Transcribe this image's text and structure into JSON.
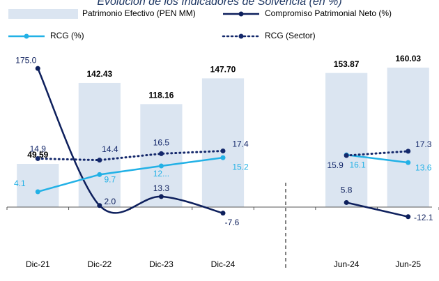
{
  "chart_data": {
    "type": "bar-line",
    "title": "Evolución de los Indicadores de Solvencia (en %)",
    "categories": [
      "Dic-21",
      "Dic-22",
      "Dic-23",
      "Dic-24",
      null,
      "Jun-24",
      "Jun-25"
    ],
    "series": [
      {
        "name": "Patrimonio Efectivo (PEN MM)",
        "type": "bar",
        "axis": "y3",
        "color": "#dbe5f1",
        "values": [
          49.59,
          142.43,
          118.16,
          147.7,
          null,
          153.87,
          160.03
        ],
        "value_labels": [
          "49.59",
          "142.43",
          "118.16",
          "147.70",
          null,
          "153.87",
          "160.03"
        ]
      },
      {
        "name": "Compromiso Patrimonial Neto (%)",
        "type": "line",
        "color": "#0d1f5c",
        "values": [
          175.0,
          2.0,
          13.3,
          -7.6,
          null,
          5.8,
          -12.1
        ],
        "value_labels": [
          "175.0",
          "2.0",
          "13.3",
          "-7.6",
          null,
          "5.8",
          "-12.1"
        ]
      },
      {
        "name": "RCG (%)",
        "type": "line",
        "axis": "y2",
        "color": "#22b1e6",
        "values": [
          4.1,
          9.7,
          12.5,
          15.2,
          null,
          16.1,
          13.6
        ],
        "value_labels": [
          "4.1",
          "9.7",
          "12...",
          "15.2",
          null,
          "16.1",
          "13.6"
        ]
      },
      {
        "name": "RCG (Sector)",
        "type": "dotted-line",
        "axis": "y2",
        "color": "#14286b",
        "values": [
          14.9,
          14.4,
          16.5,
          17.4,
          null,
          15.9,
          17.3
        ],
        "value_labels": [
          "14.9",
          "14.4",
          "16.5",
          "17.4",
          null,
          "15.9",
          "17.3"
        ]
      }
    ],
    "ylim": [
      -29,
      191
    ],
    "y2lim": [
      -8.4,
      48.4
    ],
    "y3lim": [
      -26.4,
      173.6
    ]
  }
}
